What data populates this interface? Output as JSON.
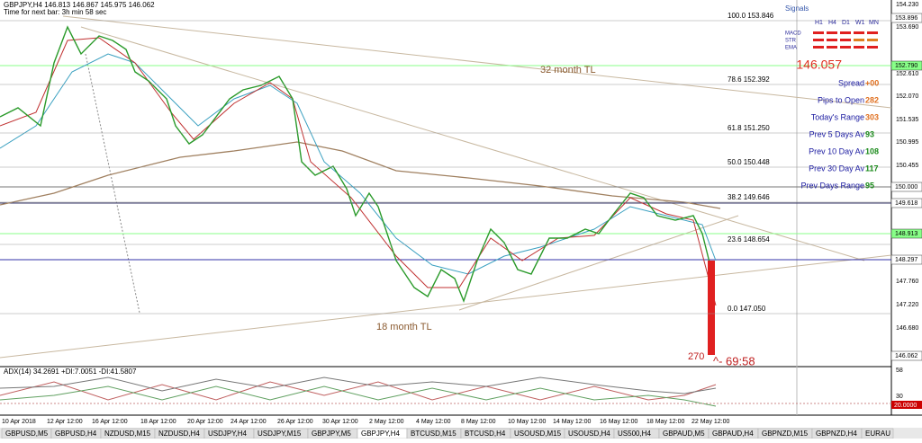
{
  "header": {
    "symbol": "GBPJPY,H4  146.813 146.867 145.975 146.062",
    "timer": "Time for next bar: 3h min 58 sec"
  },
  "fib": [
    {
      "label": "100.0  153.846"
    },
    {
      "label": "78.6  152.392"
    },
    {
      "label": "61.8  151.250"
    },
    {
      "label": "50.0  150.448"
    },
    {
      "label": "38.2  149.646"
    },
    {
      "label": "23.6  148.654"
    },
    {
      "label": "0.0  147.050"
    }
  ],
  "annotations": {
    "tl32": "32 month TL",
    "tl18": "18 month TL",
    "count": "270",
    "timer": "^- 69:58"
  },
  "price_axis": [
    "154.230",
    "153.690",
    "152.610",
    "152.070",
    "151.535",
    "150.995",
    "150.455",
    "147.760",
    "147.220",
    "146.680"
  ],
  "price_boxes": [
    "153.896",
    "152.790",
    "150.000",
    "149.618",
    "148.913",
    "148.297",
    "146.062"
  ],
  "panel": {
    "title": "Signals",
    "timeframes": [
      "H1",
      "H4",
      "D1",
      "W1",
      "MN"
    ],
    "rows": [
      "MACD",
      "STR",
      "EMA"
    ],
    "price": "146.057",
    "stats": [
      {
        "label": "Spread",
        "value": "+00"
      },
      {
        "label": "Pips to Open",
        "value": "282"
      },
      {
        "label": "Today's Range",
        "value": "303"
      },
      {
        "label": "Prev 5 Days Av",
        "value": "93"
      },
      {
        "label": "Prev 10 Day Av",
        "value": "108"
      },
      {
        "label": "Prev 30 Day Av",
        "value": "117"
      },
      {
        "label": "Prev Days Range",
        "value": "95"
      }
    ]
  },
  "adx": {
    "label": "ADX(14) 34.2691 +DI:7.0051 -DI:41.5807",
    "axis": [
      "58",
      "30"
    ],
    "box": "20.0000"
  },
  "dates": [
    "10 Apr 2018",
    "12 Apr 12:00",
    "16 Apr 12:00",
    "18 Apr 12:00",
    "20 Apr 12:00",
    "24 Apr 12:00",
    "26 Apr 12:00",
    "30 Apr 12:00",
    "2 May 12:00",
    "4 May 12:00",
    "8 May 12:00",
    "10 May 12:00",
    "14 May 12:00",
    "16 May 12:00",
    "18 May 12:00",
    "22 May 12:00"
  ],
  "tabs": [
    "GBPUSD,M5",
    "GBPUSD,H4",
    "NZDUSD,M15",
    "NZDUSD,H4",
    "USDJPY,H4",
    "USDJPY,M15",
    "GBPJPY,M5",
    "GBPJPY,H4",
    "BTCUSD,M15",
    "BTCUSD,H4",
    "USOUSD,M15",
    "USOUSD,H4",
    "US500,H4",
    "GBPAUD,M5",
    "GBPAUD,H4",
    "GBPNZD,M15",
    "GBPNZD,H4",
    "EURAU"
  ]
}
